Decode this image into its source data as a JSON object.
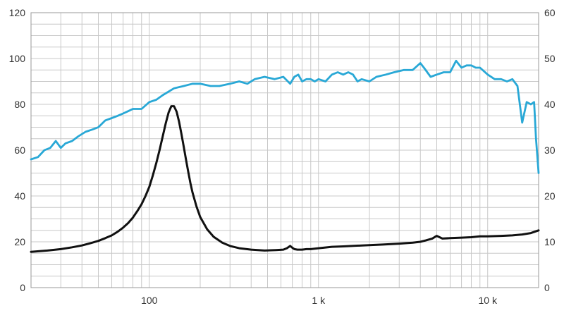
{
  "chart_data": {
    "type": "line",
    "x_scale": "log",
    "xlim": [
      20,
      20000
    ],
    "ylim_left": [
      0,
      120
    ],
    "ylim_right": [
      0,
      60
    ],
    "grid": true,
    "x_tick_labels": [
      {
        "value": 100,
        "label": "100"
      },
      {
        "value": 1000,
        "label": "1 k"
      },
      {
        "value": 10000,
        "label": "10 k"
      }
    ],
    "y_left_ticks": [
      "0",
      "20",
      "40",
      "60",
      "80",
      "100",
      "120"
    ],
    "y_right_ticks": [
      "0",
      "10",
      "20",
      "30",
      "40",
      "50",
      "60"
    ],
    "series": [
      {
        "axis": "left",
        "color": "#29a8d6",
        "x": [
          20,
          22,
          24,
          26,
          28,
          30,
          32,
          35,
          38,
          42,
          46,
          50,
          55,
          60,
          65,
          70,
          75,
          80,
          90,
          100,
          110,
          120,
          140,
          160,
          180,
          200,
          230,
          260,
          300,
          340,
          380,
          420,
          480,
          550,
          620,
          680,
          720,
          760,
          800,
          850,
          900,
          950,
          1000,
          1100,
          1200,
          1300,
          1400,
          1500,
          1600,
          1700,
          1800,
          2000,
          2200,
          2500,
          2800,
          3200,
          3600,
          4000,
          4200,
          4600,
          5000,
          5500,
          6000,
          6500,
          7000,
          7500,
          8000,
          8500,
          9000,
          10000,
          11000,
          12000,
          13000,
          14000,
          15000,
          16000,
          17000,
          18000,
          18800,
          19300,
          20000
        ],
        "y": [
          56,
          57,
          60,
          61,
          64,
          61,
          63,
          64,
          66,
          68,
          69,
          70,
          73,
          74,
          75,
          76,
          77,
          78,
          78,
          81,
          82,
          84,
          87,
          88,
          89,
          89,
          88,
          88,
          89,
          90,
          89,
          91,
          92,
          91,
          92,
          89,
          92,
          93,
          90,
          91,
          91,
          90,
          91,
          90,
          93,
          94,
          93,
          94,
          93,
          90,
          91,
          90,
          92,
          93,
          94,
          95,
          95,
          98,
          96,
          92,
          93,
          94,
          94,
          99,
          96,
          97,
          97,
          96,
          96,
          93,
          91,
          91,
          90,
          91,
          88,
          72,
          81,
          80,
          81,
          65,
          50
        ]
      },
      {
        "axis": "right",
        "color": "#111111",
        "x": [
          20,
          25,
          30,
          35,
          40,
          45,
          50,
          55,
          60,
          65,
          70,
          75,
          80,
          85,
          90,
          95,
          100,
          105,
          110,
          115,
          120,
          125,
          130,
          135,
          140,
          145,
          150,
          155,
          160,
          165,
          170,
          175,
          180,
          190,
          200,
          220,
          240,
          270,
          300,
          340,
          400,
          480,
          560,
          620,
          650,
          680,
          700,
          720,
          750,
          800,
          850,
          900,
          1000,
          1200,
          1400,
          1800,
          2400,
          3000,
          3600,
          4000,
          4300,
          4700,
          5000,
          5400,
          6000,
          7000,
          8000,
          9000,
          10000,
          12000,
          14000,
          16000,
          18000,
          20000
        ],
        "y": [
          7.8,
          8.1,
          8.4,
          8.8,
          9.2,
          9.7,
          10.2,
          10.8,
          11.4,
          12.2,
          13.1,
          14.1,
          15.3,
          16.7,
          18.2,
          20,
          22,
          24.5,
          27.2,
          30,
          33,
          35.8,
          38.2,
          39.6,
          39.6,
          38.4,
          36.2,
          33.5,
          30.7,
          27.9,
          25.2,
          22.8,
          20.8,
          17.7,
          15.4,
          12.7,
          11.1,
          9.8,
          9.1,
          8.6,
          8.3,
          8.1,
          8.2,
          8.3,
          8.6,
          9.1,
          8.7,
          8.4,
          8.3,
          8.3,
          8.4,
          8.4,
          8.6,
          8.9,
          9,
          9.2,
          9.4,
          9.6,
          9.8,
          10,
          10.3,
          10.7,
          11.3,
          10.7,
          10.8,
          10.9,
          11,
          11.2,
          11.2,
          11.3,
          11.4,
          11.6,
          11.9,
          12.5
        ]
      }
    ]
  }
}
